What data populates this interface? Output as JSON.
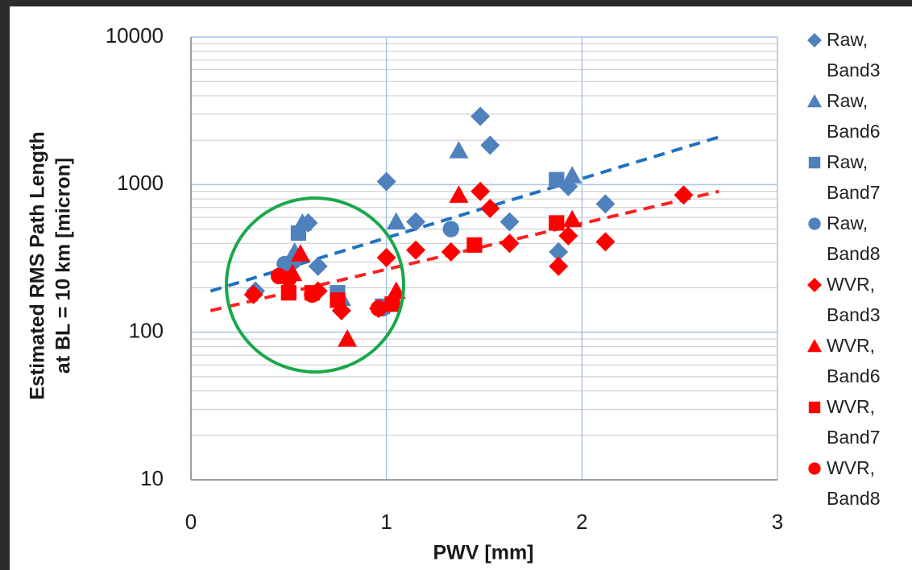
{
  "chart_data": {
    "type": "scatter",
    "xlabel": "PWV [mm]",
    "ylabel": [
      "Estimated RMS Path Length",
      "at BL = 10 km [micron]"
    ],
    "xlim": [
      0,
      3
    ],
    "xticks": [
      0,
      1,
      2,
      3
    ],
    "ylim": [
      10,
      10000
    ],
    "yticks": [
      10,
      100,
      1000,
      10000
    ],
    "log_y": true,
    "grid": true,
    "minor_grid": true,
    "legend": "right",
    "series": [
      {
        "name": "Raw, Band3",
        "color": "#4f81bd",
        "marker": "diamond",
        "x": [
          1.0,
          1.48,
          1.53,
          1.15,
          1.63,
          1.88,
          1.93,
          2.12,
          0.33,
          0.6,
          0.65
        ],
        "values": [
          1050,
          2900,
          1850,
          560,
          560,
          350,
          970,
          740,
          190,
          550,
          280
        ]
      },
      {
        "name": "Raw, Band6",
        "color": "#4f81bd",
        "marker": "triangle",
        "x": [
          1.37,
          1.05,
          1.95,
          0.57,
          0.77,
          0.53
        ],
        "values": [
          1700,
          560,
          1150,
          550,
          170,
          350
        ]
      },
      {
        "name": "Raw, Band7",
        "color": "#4f81bd",
        "marker": "square",
        "x": [
          1.87,
          0.55,
          0.75,
          0.98
        ],
        "values": [
          1080,
          470,
          185,
          150
        ]
      },
      {
        "name": "Raw, Band8",
        "color": "#4f81bd",
        "marker": "circle",
        "x": [
          0.48,
          1.33,
          0.52,
          0.98
        ],
        "values": [
          290,
          500,
          300,
          145
        ]
      },
      {
        "name": "WVR, Band3",
        "color": "#ff0000",
        "marker": "diamond",
        "x": [
          0.32,
          0.65,
          0.77,
          1.0,
          1.15,
          1.33,
          1.48,
          1.53,
          1.63,
          1.88,
          1.93,
          2.12,
          2.52,
          0.96
        ],
        "values": [
          180,
          190,
          140,
          320,
          360,
          350,
          900,
          690,
          400,
          280,
          450,
          410,
          850,
          145
        ]
      },
      {
        "name": "WVR, Band6",
        "color": "#ff0000",
        "marker": "triangle",
        "x": [
          1.37,
          0.56,
          0.8,
          1.05,
          1.95,
          0.52
        ],
        "values": [
          850,
          340,
          90,
          190,
          580,
          250
        ]
      },
      {
        "name": "WVR, Band7",
        "color": "#ff0000",
        "marker": "square",
        "x": [
          0.5,
          0.75,
          1.03,
          1.45,
          1.87,
          0.62
        ],
        "values": [
          185,
          165,
          155,
          390,
          550,
          185
        ]
      },
      {
        "name": "WVR, Band8",
        "color": "#ff0000",
        "marker": "circle",
        "x": [
          0.45,
          0.62,
          0.96,
          0.5
        ],
        "values": [
          240,
          180,
          145,
          230
        ]
      }
    ],
    "trend_lines": [
      {
        "color": "#1f72c0",
        "x": [
          0.1,
          2.7
        ],
        "values": [
          190,
          2100
        ]
      },
      {
        "color": "#ff2020",
        "x": [
          0.1,
          2.7
        ],
        "values": [
          140,
          900
        ]
      }
    ]
  }
}
